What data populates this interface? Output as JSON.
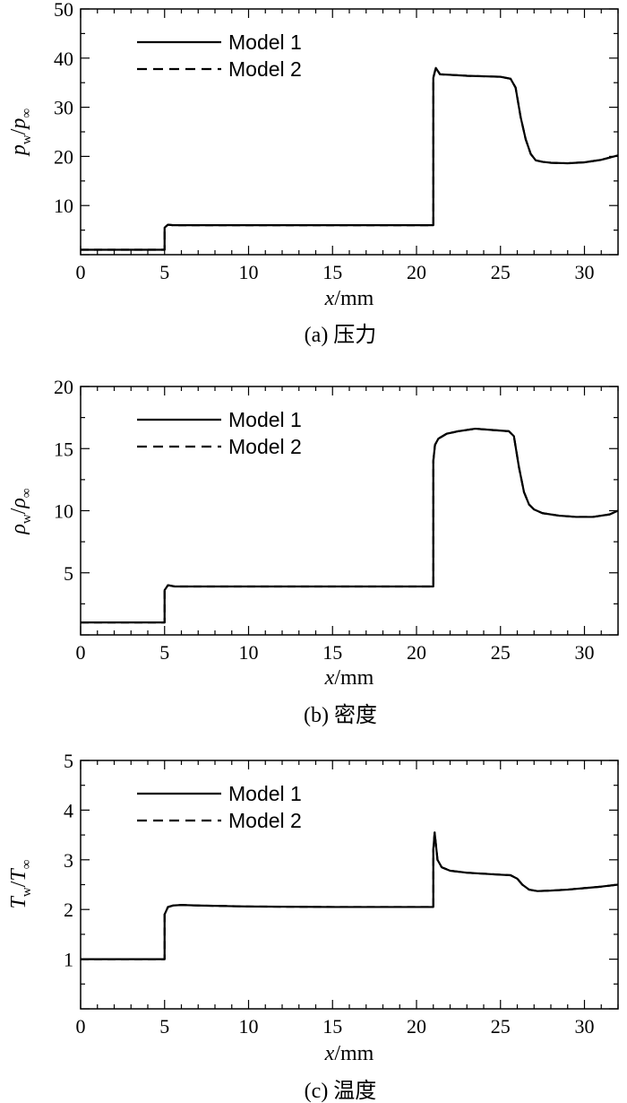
{
  "chart_data": [
    {
      "type": "line",
      "caption": "(a) 压力",
      "xlabel_var": "x",
      "xlabel_unit": "/mm",
      "ylabel": {
        "num": "p",
        "num_sub": "w",
        "den": "p",
        "den_sub": "∞"
      },
      "xlim": [
        0,
        32
      ],
      "ylim": [
        0,
        50
      ],
      "xticks": [
        0,
        5,
        10,
        15,
        20,
        25,
        30
      ],
      "yticks": [
        10,
        20,
        30,
        40,
        50
      ],
      "legend_position": "top-left",
      "series": [
        {
          "name": "Model 1",
          "dash": "solid",
          "x": [
            0,
            5.0,
            5.0,
            5.2,
            5.5,
            21.0,
            21.0,
            21.15,
            21.4,
            22,
            23,
            24,
            25,
            25.6,
            25.9,
            26.2,
            26.5,
            26.8,
            27.1,
            27.5,
            28,
            29,
            30,
            31,
            32
          ],
          "y": [
            1,
            1,
            5.5,
            6.1,
            6.0,
            6.0,
            36,
            38,
            36.7,
            36.6,
            36.4,
            36.3,
            36.2,
            35.8,
            34,
            28,
            23.5,
            20.5,
            19.2,
            18.9,
            18.7,
            18.6,
            18.8,
            19.3,
            20.2
          ]
        },
        {
          "name": "Model 2",
          "dash": "dashed",
          "x": [
            0,
            5.0,
            5.0,
            5.2,
            5.5,
            21.0,
            21.0,
            21.15,
            21.4,
            22,
            23,
            24,
            25,
            25.6,
            25.9,
            26.2,
            26.5,
            26.8,
            27.1,
            27.5,
            28,
            29,
            30,
            31,
            32
          ],
          "y": [
            1,
            1,
            5.5,
            6.1,
            6.0,
            6.0,
            36,
            38,
            36.7,
            36.6,
            36.4,
            36.3,
            36.2,
            35.8,
            34,
            28,
            23.5,
            20.5,
            19.2,
            18.9,
            18.7,
            18.6,
            18.8,
            19.3,
            20.2
          ]
        }
      ]
    },
    {
      "type": "line",
      "caption": "(b) 密度",
      "xlabel_var": "x",
      "xlabel_unit": "/mm",
      "ylabel": {
        "num": "ρ",
        "num_sub": "w",
        "den": "ρ",
        "den_sub": "∞"
      },
      "xlim": [
        0,
        32
      ],
      "ylim": [
        0,
        20
      ],
      "xticks": [
        0,
        5,
        10,
        15,
        20,
        25,
        30
      ],
      "yticks": [
        5,
        10,
        15,
        20
      ],
      "legend_position": "top-left",
      "series": [
        {
          "name": "Model 1",
          "dash": "solid",
          "x": [
            0,
            5.0,
            5.0,
            5.2,
            5.6,
            21.0,
            21.0,
            21.1,
            21.3,
            21.8,
            22.5,
            23.5,
            24.5,
            25.5,
            25.8,
            26.1,
            26.4,
            26.7,
            27.0,
            27.5,
            28.5,
            29.5,
            30.5,
            31.5,
            32
          ],
          "y": [
            1,
            1,
            3.6,
            4.0,
            3.9,
            3.9,
            14,
            15.3,
            15.8,
            16.2,
            16.4,
            16.6,
            16.5,
            16.4,
            16.0,
            13.5,
            11.5,
            10.5,
            10.1,
            9.8,
            9.6,
            9.5,
            9.5,
            9.7,
            10.0
          ]
        },
        {
          "name": "Model 2",
          "dash": "dashed",
          "x": [
            0,
            5.0,
            5.0,
            5.2,
            5.6,
            21.0,
            21.0,
            21.1,
            21.3,
            21.8,
            22.5,
            23.5,
            24.5,
            25.5,
            25.8,
            26.1,
            26.4,
            26.7,
            27.0,
            27.5,
            28.5,
            29.5,
            30.5,
            31.5,
            32
          ],
          "y": [
            1,
            1,
            3.6,
            4.0,
            3.9,
            3.9,
            14,
            15.3,
            15.8,
            16.2,
            16.4,
            16.6,
            16.5,
            16.4,
            16.0,
            13.5,
            11.5,
            10.5,
            10.1,
            9.8,
            9.6,
            9.5,
            9.5,
            9.7,
            10.0
          ]
        }
      ]
    },
    {
      "type": "line",
      "caption": "(c) 温度",
      "xlabel_var": "x",
      "xlabel_unit": "/mm",
      "ylabel": {
        "num": "T",
        "num_sub": "w",
        "den": "T",
        "den_sub": "∞"
      },
      "xlim": [
        0,
        32
      ],
      "ylim": [
        0,
        5
      ],
      "xticks": [
        0,
        5,
        10,
        15,
        20,
        25,
        30
      ],
      "yticks": [
        1,
        2,
        3,
        4,
        5
      ],
      "legend_position": "top-left",
      "series": [
        {
          "name": "Model 1",
          "dash": "solid",
          "x": [
            0,
            5.0,
            5.0,
            5.2,
            5.5,
            6.0,
            7,
            10,
            15,
            21.0,
            21.0,
            21.08,
            21.25,
            21.5,
            22,
            23,
            24,
            25,
            25.6,
            26.0,
            26.3,
            26.7,
            27.2,
            28,
            29,
            30,
            31,
            32
          ],
          "y": [
            1.0,
            1.0,
            1.9,
            2.05,
            2.08,
            2.09,
            2.08,
            2.06,
            2.05,
            2.05,
            3.2,
            3.55,
            3.0,
            2.85,
            2.78,
            2.74,
            2.72,
            2.7,
            2.69,
            2.62,
            2.5,
            2.4,
            2.37,
            2.38,
            2.4,
            2.43,
            2.46,
            2.5
          ]
        },
        {
          "name": "Model 2",
          "dash": "dashed",
          "x": [
            0,
            5.0,
            5.0,
            5.2,
            5.5,
            6.0,
            7,
            10,
            15,
            21.0,
            21.0,
            21.08,
            21.25,
            21.5,
            22,
            23,
            24,
            25,
            25.6,
            26.0,
            26.3,
            26.7,
            27.2,
            28,
            29,
            30,
            31,
            32
          ],
          "y": [
            1.0,
            1.0,
            1.9,
            2.05,
            2.08,
            2.09,
            2.08,
            2.06,
            2.05,
            2.05,
            3.2,
            3.55,
            3.0,
            2.85,
            2.78,
            2.74,
            2.72,
            2.7,
            2.69,
            2.62,
            2.5,
            2.4,
            2.37,
            2.38,
            2.4,
            2.43,
            2.46,
            2.5
          ]
        }
      ]
    }
  ]
}
